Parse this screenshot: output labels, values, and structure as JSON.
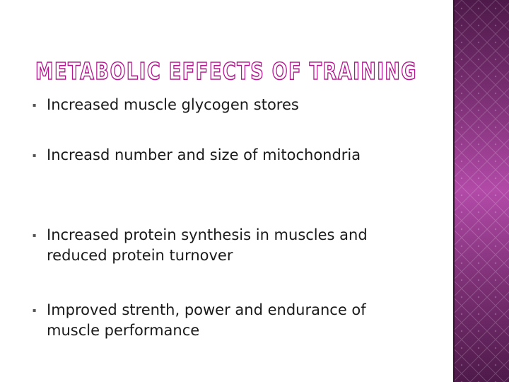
{
  "slide": {
    "title": "METABOLIC EFFECTS OF TRAINING",
    "bullet_marker": "▪",
    "bullets": [
      {
        "text": "Increased muscle glycogen stores"
      },
      {
        "text": "Increasd number and size of mitochondria"
      },
      {
        "text": "Increased protein synthesis in muscles and reduced protein turnover"
      },
      {
        "text": "Improved strenth, power and endurance of muscle performance"
      }
    ]
  },
  "colors": {
    "title_fill": "#ffffff",
    "title_stroke": "#b3168f",
    "band_dark": "#4e1a4a",
    "band_light": "#b24aa8",
    "text": "#1a1a1a"
  }
}
